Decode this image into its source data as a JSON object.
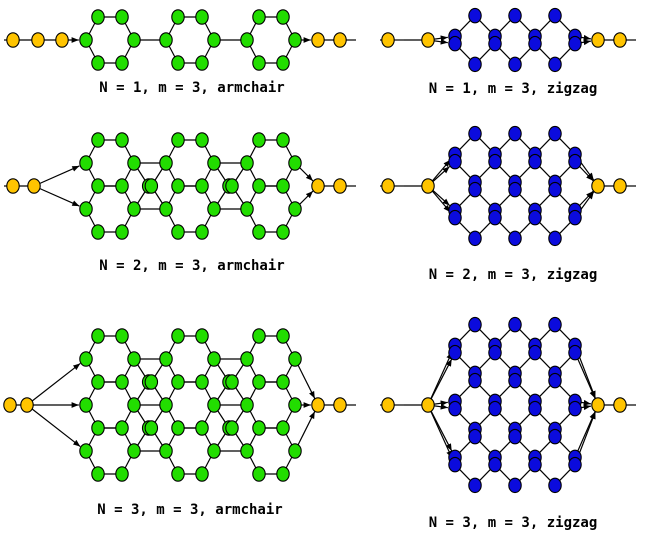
{
  "colors": {
    "armchair_node": "#22dd00",
    "zigzag_node": "#0b0bdd",
    "lead_node": "#ffc400",
    "edge": "#000000",
    "background": "#ffffff"
  },
  "panels": [
    {
      "id": "armchair-n1",
      "kind": "armchair",
      "N": 1,
      "m": 3,
      "caption": "N = 1, m = 3, armchair"
    },
    {
      "id": "armchair-n2",
      "kind": "armchair",
      "N": 2,
      "m": 3,
      "caption": "N = 2, m = 3, armchair"
    },
    {
      "id": "armchair-n3",
      "kind": "armchair",
      "N": 3,
      "m": 3,
      "caption": "N = 3, m = 3, armchair"
    },
    {
      "id": "zigzag-n1",
      "kind": "zigzag",
      "N": 1,
      "m": 3,
      "caption": "N = 1, m = 3, zigzag"
    },
    {
      "id": "zigzag-n2",
      "kind": "zigzag",
      "N": 2,
      "m": 3,
      "caption": "N = 2, m = 3, zigzag"
    },
    {
      "id": "zigzag-n3",
      "kind": "zigzag",
      "N": 3,
      "m": 3,
      "caption": "N = 3, m = 3, zigzag"
    }
  ]
}
